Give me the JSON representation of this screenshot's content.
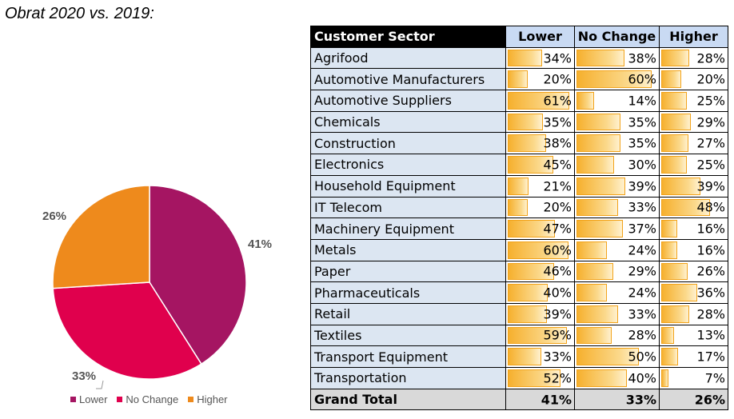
{
  "title": "Obrat 2020 vs. 2019:",
  "chart_data": [
    {
      "type": "pie",
      "title": "",
      "slices": [
        {
          "name": "Lower",
          "value": 41,
          "label": "41%",
          "color": "#a51562"
        },
        {
          "name": "No Change",
          "value": 33,
          "label": "33%",
          "color": "#e0004d"
        },
        {
          "name": "Higher",
          "value": 26,
          "label": "26%",
          "color": "#ee8a1c"
        }
      ],
      "legend": [
        "Lower",
        "No Change",
        "Higher"
      ],
      "legend_position": "bottom"
    },
    {
      "type": "table",
      "columns": [
        "Customer Sector",
        "Lower",
        "No Change",
        "Higher"
      ],
      "rows": [
        {
          "sector": "Agrifood",
          "values": [
            34,
            38,
            28
          ]
        },
        {
          "sector": "Automotive Manufacturers",
          "values": [
            20,
            60,
            20
          ]
        },
        {
          "sector": "Automotive Suppliers",
          "values": [
            61,
            14,
            25
          ]
        },
        {
          "sector": "Chemicals",
          "values": [
            35,
            35,
            29
          ]
        },
        {
          "sector": "Construction",
          "values": [
            38,
            35,
            27
          ]
        },
        {
          "sector": "Electronics",
          "values": [
            45,
            30,
            25
          ]
        },
        {
          "sector": "Household Equipment",
          "values": [
            21,
            39,
            39
          ]
        },
        {
          "sector": "IT Telecom",
          "values": [
            20,
            33,
            48
          ]
        },
        {
          "sector": "Machinery Equipment",
          "values": [
            47,
            37,
            16
          ]
        },
        {
          "sector": "Metals",
          "values": [
            60,
            24,
            16
          ]
        },
        {
          "sector": "Paper",
          "values": [
            46,
            29,
            26
          ]
        },
        {
          "sector": "Pharmaceuticals",
          "values": [
            40,
            24,
            36
          ]
        },
        {
          "sector": "Retail",
          "values": [
            39,
            33,
            28
          ]
        },
        {
          "sector": "Textiles",
          "values": [
            59,
            28,
            13
          ]
        },
        {
          "sector": "Transport Equipment",
          "values": [
            33,
            50,
            17
          ]
        },
        {
          "sector": "Transportation",
          "values": [
            52,
            40,
            7
          ]
        }
      ],
      "total": {
        "sector": "Grand Total",
        "values": [
          41,
          33,
          26
        ]
      },
      "value_suffix": "%"
    }
  ]
}
